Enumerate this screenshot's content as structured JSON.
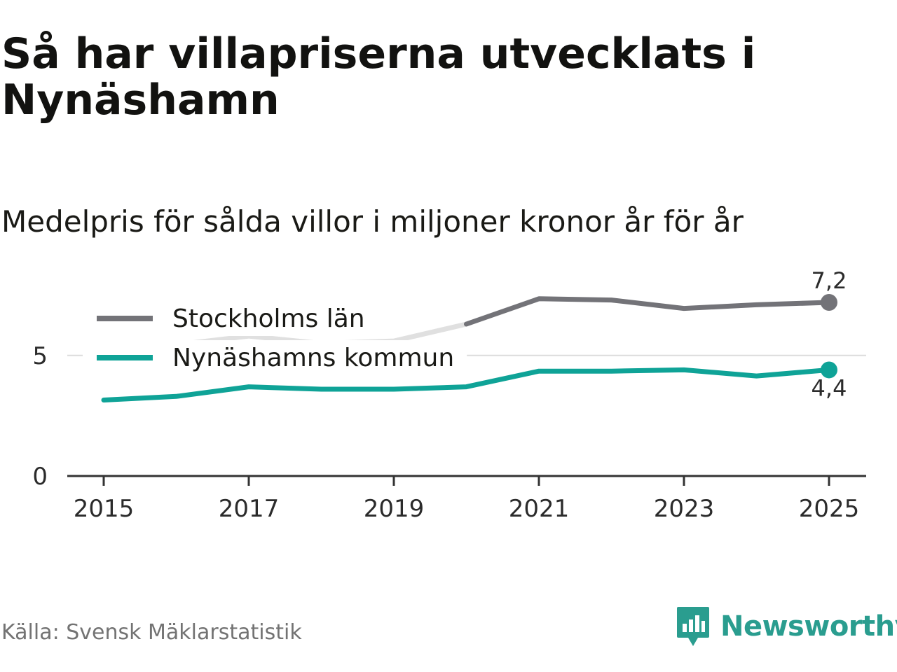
{
  "title": "Så har villapriserna utvecklats i Nynäshamn",
  "subtitle": "Medelpris för sålda villor i miljoner kronor år för år",
  "source": "Källa: Svensk Mäklarstatistik",
  "brand": {
    "name": "Newsworthy",
    "icon": "newsworthy-logo-icon",
    "color": "#2a9d8f"
  },
  "chart_data": {
    "type": "line",
    "x": [
      2015,
      2016,
      2017,
      2018,
      2019,
      2020,
      2021,
      2022,
      2023,
      2024,
      2025
    ],
    "x_ticks": [
      "2015",
      "2017",
      "2019",
      "2021",
      "2023",
      "2025"
    ],
    "y_ticks": [
      "0",
      "5"
    ],
    "ylim": [
      0,
      8.2
    ],
    "grid": true,
    "series": [
      {
        "name": "Stockholms län",
        "color": "#737378",
        "faded_color": "#e0e0e0",
        "faded_until": 2020,
        "values": [
          5.1,
          5.45,
          5.8,
          5.5,
          5.6,
          6.3,
          7.35,
          7.3,
          6.95,
          7.1,
          7.2
        ]
      },
      {
        "name": "Nynäshamns kommun",
        "color": "#0fa397",
        "values": [
          3.15,
          3.3,
          3.7,
          3.6,
          3.6,
          3.7,
          4.35,
          4.35,
          4.4,
          4.15,
          4.4
        ]
      }
    ],
    "end_labels": [
      {
        "series": "Stockholms län",
        "text": "7,2",
        "position": "above"
      },
      {
        "series": "Nynäshamns kommun",
        "text": "4,4",
        "position": "below"
      }
    ],
    "legend": "top-left"
  }
}
